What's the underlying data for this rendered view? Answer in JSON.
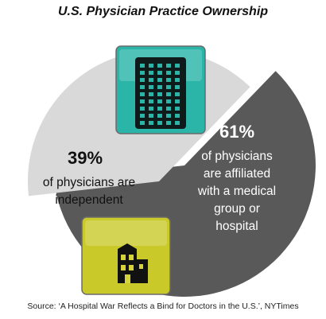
{
  "chart_data": {
    "type": "pie",
    "title": "U.S. Physician Practice Ownership",
    "slices": [
      {
        "value": 61,
        "value_label": "61%",
        "description_lines": [
          "of physicians",
          "are affiliated",
          "with a medical",
          "group or",
          "hospital"
        ],
        "color": "#595959",
        "text_color": "#ffffff",
        "icon": "hospital-building-icon",
        "icon_color": "#2bb5a8"
      },
      {
        "value": 39,
        "value_label": "39%",
        "description_lines": [
          "of physicians are",
          "independent"
        ],
        "color": "#d9d9d9",
        "text_color": "#111111",
        "icon": "small-house-icon",
        "icon_color": "#c9c92a"
      }
    ],
    "source": "Source: ‘A Hospital War Reflects a Bind for Doctors in the U.S.’, NYTimes"
  }
}
